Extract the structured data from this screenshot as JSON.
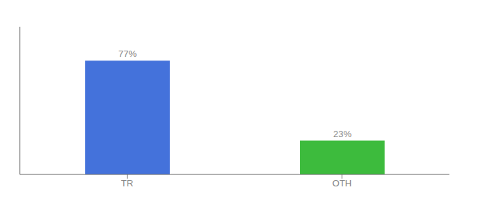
{
  "chart_data": {
    "type": "bar",
    "categories": [
      "TR",
      "OTH"
    ],
    "values": [
      77,
      23
    ],
    "colors": [
      "#4472db",
      "#3dbb3d"
    ],
    "value_labels": [
      "77%",
      "23%"
    ],
    "data_labels": true,
    "ylim": [
      0,
      100
    ],
    "tick_labels": "x"
  }
}
